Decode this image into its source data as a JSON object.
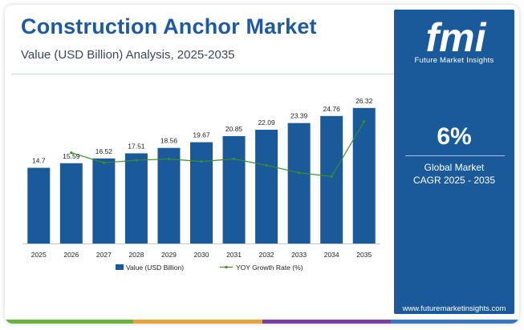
{
  "header": {
    "title": "Construction Anchor Market",
    "subtitle": "Value (USD Billion) Analysis, 2025-2035"
  },
  "side_panel": {
    "logo_text": "fmi",
    "logo_tagline": "Future Market Insights",
    "cagr_value": "6%",
    "cagr_label_line1": "Global Market",
    "cagr_label_line2": "CAGR 2025 - 2035",
    "website": "www.futuremarketinsights.com"
  },
  "colors": {
    "title": "#1d5aa0",
    "bar": "#1a5a9a",
    "line": "#3d8c2a",
    "panel": "#1a5a9a",
    "stripe": [
      "#6bb33a",
      "#e9a33b",
      "#7a3fa0",
      "#3a78c0"
    ]
  },
  "chart_data": {
    "type": "bar",
    "categories": [
      "2025",
      "2026",
      "2027",
      "2028",
      "2029",
      "2030",
      "2031",
      "2032",
      "2033",
      "2034",
      "2035"
    ],
    "series": [
      {
        "name": "Value (USD Billion)",
        "type": "bar",
        "values": [
          14.7,
          15.59,
          16.52,
          17.51,
          18.56,
          19.67,
          20.85,
          22.09,
          23.39,
          24.76,
          26.32
        ],
        "labels": [
          "14.7",
          "15.59",
          "16.52",
          "17.51",
          "18.56",
          "19.67",
          "20.85",
          "22.09",
          "23.39",
          "24.76",
          "26.32"
        ]
      },
      {
        "name": "YOY Growth Rate (%)",
        "type": "line",
        "x": [
          "2026",
          "2027",
          "2028",
          "2029",
          "2030",
          "2031",
          "2032",
          "2033",
          "2034",
          "2035"
        ],
        "values": [
          6.05,
          5.97,
          5.99,
          6.0,
          5.98,
          6.0,
          5.95,
          5.89,
          5.86,
          6.3
        ]
      }
    ],
    "ylim": [
      0,
      28
    ],
    "legend": "bottom-center",
    "grid": false
  }
}
